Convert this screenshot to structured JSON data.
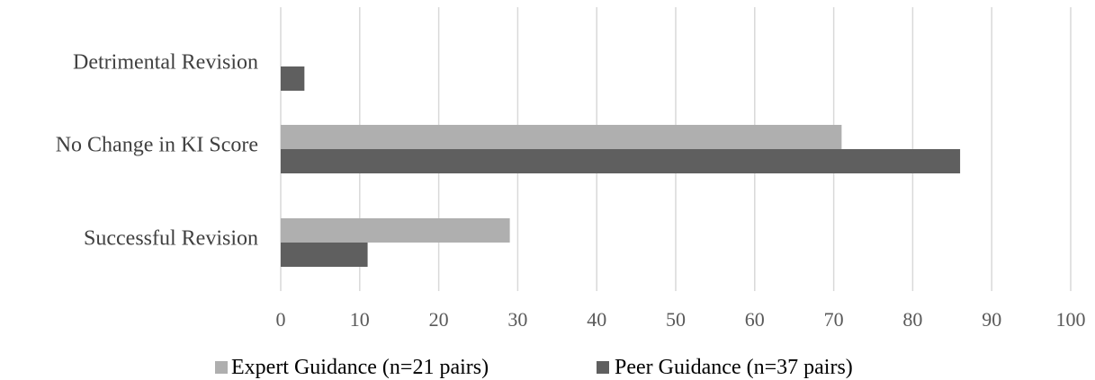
{
  "chart_data": {
    "type": "bar",
    "orientation": "horizontal",
    "categories": [
      "Detrimental Revision",
      "No Change in KI Score",
      "Successful Revision"
    ],
    "series": [
      {
        "name": "Expert Guidance (n=21 pairs)",
        "values": [
          0,
          71,
          29
        ],
        "color": "#afafaf"
      },
      {
        "name": "Peer Guidance (n=37 pairs)",
        "values": [
          3,
          86,
          11
        ],
        "color": "#5f5f5f"
      }
    ],
    "xlim": [
      0,
      100
    ],
    "xticks": [
      "0",
      "10",
      "20",
      "30",
      "40",
      "50",
      "60",
      "70",
      "80",
      "90",
      "100"
    ],
    "grid": "vertical",
    "legend": "bottom",
    "title": "",
    "xlabel": "",
    "ylabel": ""
  }
}
